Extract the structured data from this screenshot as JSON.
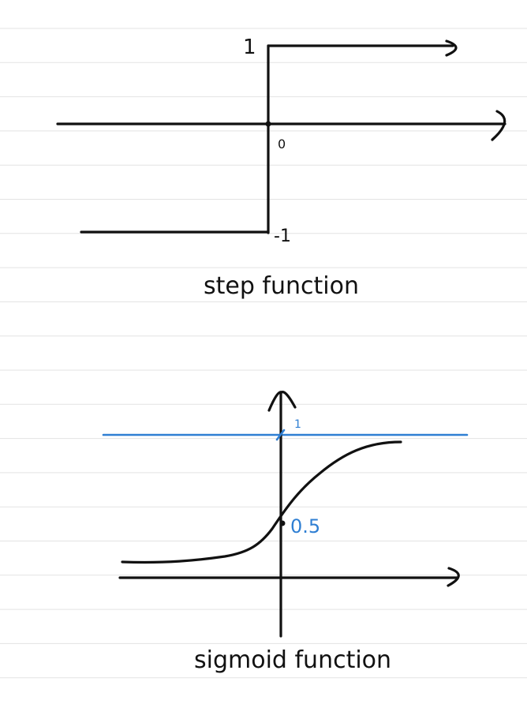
{
  "colors": {
    "ink": "#111111",
    "accent": "#2f7fd3",
    "ruled_line": "#e3e3e3",
    "paper": "#ffffff"
  },
  "step_diagram": {
    "caption": "step function",
    "label_top": "1",
    "label_origin": "0",
    "label_bottom": "-1",
    "icons": [
      "x-axis-arrow-icon",
      "top-level-arrow-icon"
    ]
  },
  "sigmoid_diagram": {
    "caption": "sigmoid function",
    "label_one": "1",
    "label_mid": "0.5",
    "icons": [
      "y-axis-arrow-icon",
      "x-axis-arrow-icon"
    ]
  }
}
